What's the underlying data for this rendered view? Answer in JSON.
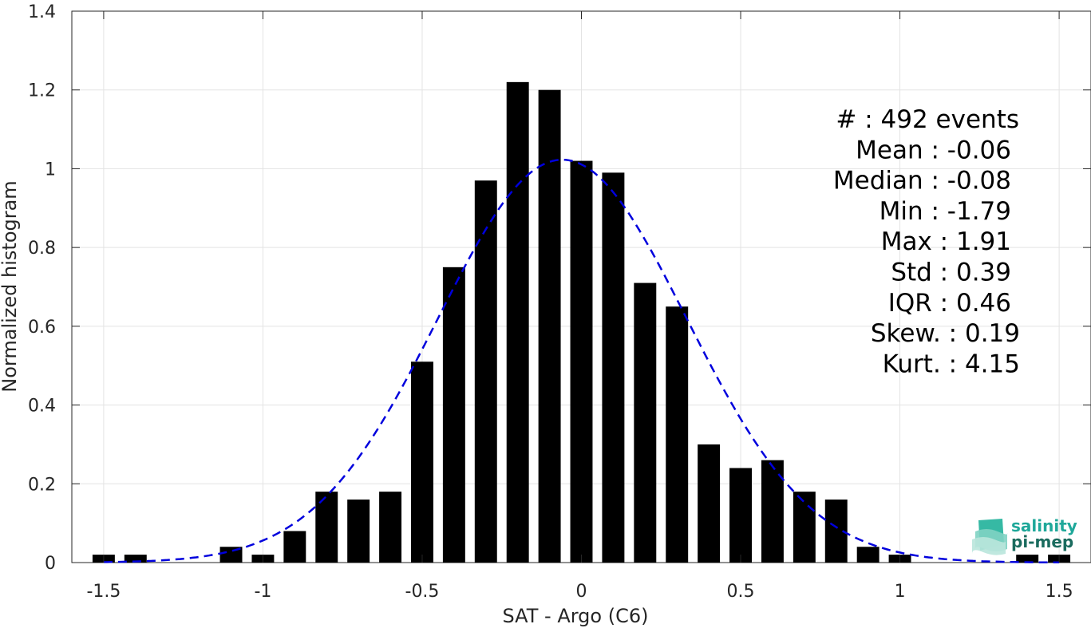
{
  "chart_data": {
    "type": "bar",
    "xlabel": "SAT - Argo (C6)",
    "ylabel": "Normalized histogram",
    "xlim": [
      -1.6,
      1.6
    ],
    "ylim": [
      0,
      1.4
    ],
    "xticks": [
      -1.5,
      -1,
      -0.5,
      0,
      0.5,
      1,
      1.5
    ],
    "xtick_labels": [
      "-1.5",
      "-1",
      "-0.5",
      "0",
      "0.5",
      "1",
      "1.5"
    ],
    "yticks": [
      0,
      0.2,
      0.4,
      0.6,
      0.8,
      1,
      1.2,
      1.4
    ],
    "ytick_labels": [
      "0",
      "0.2",
      "0.4",
      "0.6",
      "0.8",
      "1",
      "1.2",
      "1.4"
    ],
    "grid": true,
    "bar_width": 0.07,
    "x": [
      -1.5,
      -1.4,
      -1.1,
      -1.0,
      -0.9,
      -0.8,
      -0.7,
      -0.6,
      -0.5,
      -0.4,
      -0.3,
      -0.2,
      -0.1,
      0.0,
      0.1,
      0.2,
      0.3,
      0.4,
      0.5,
      0.6,
      0.7,
      0.8,
      0.9,
      1.0,
      1.4,
      1.5
    ],
    "values": [
      0.02,
      0.02,
      0.04,
      0.02,
      0.08,
      0.18,
      0.16,
      0.18,
      0.51,
      0.75,
      0.97,
      1.22,
      1.2,
      1.02,
      0.99,
      0.71,
      0.65,
      0.3,
      0.24,
      0.26,
      0.18,
      0.16,
      0.04,
      0.02,
      0.02,
      0.02
    ],
    "bar_color": "#000000",
    "fit_curve": {
      "kind": "gaussian",
      "mean": -0.06,
      "std": 0.39,
      "color": "#0000dd",
      "style": "dashed"
    },
    "stats": [
      "#  : 492 events",
      "Mean : -0.06",
      "Median : -0.08",
      "Min : -1.79",
      "Max : 1.91",
      "Std : 0.39",
      "IQR : 0.46",
      "Skew. : 0.19",
      "Kurt. : 4.15"
    ]
  },
  "logo": {
    "line1": "salinity",
    "line2": "pi-mep",
    "color1": "#1fa89a",
    "color2": "#1a6b5e"
  }
}
